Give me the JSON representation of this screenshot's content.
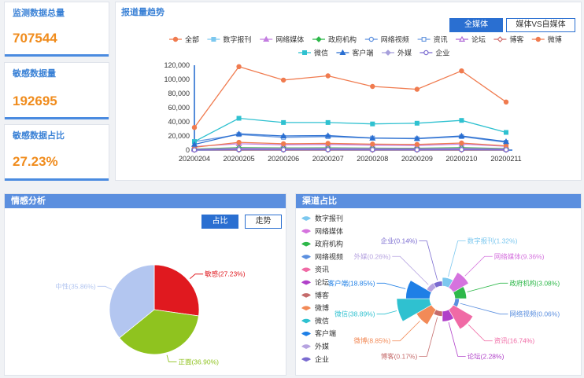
{
  "stats": [
    {
      "label": "监测数据总量",
      "value": "707544"
    },
    {
      "label": "敏感数据量",
      "value": "192695"
    },
    {
      "label": "敏感数据占比",
      "value": "27.23%"
    }
  ],
  "trend": {
    "title": "报道量趋势",
    "buttons": {
      "all_media": "全媒体",
      "compare": "媒体VS自媒体"
    },
    "chart_data": {
      "type": "line",
      "x": [
        "20200204",
        "20200205",
        "20200206",
        "20200207",
        "20200208",
        "20200209",
        "20200210",
        "20200211"
      ],
      "ylim": [
        0,
        120000
      ],
      "yticks": [
        "0",
        "20,000",
        "40,000",
        "60,000",
        "80,000",
        "100,000",
        "120,000"
      ],
      "series": [
        {
          "name": "全部",
          "color": "#f07b4f",
          "marker": "circle",
          "values": [
            32000,
            118000,
            99000,
            105000,
            90000,
            86000,
            112000,
            68000
          ]
        },
        {
          "name": "数字报刊",
          "color": "#7cc8ef",
          "marker": "square",
          "values": [
            800,
            1000,
            900,
            950,
            850,
            800,
            1000,
            700
          ]
        },
        {
          "name": "网络媒体",
          "color": "#c37de0",
          "marker": "triangle",
          "values": [
            5000,
            9000,
            7500,
            8000,
            7000,
            6500,
            8500,
            5500
          ]
        },
        {
          "name": "政府机构",
          "color": "#2eb84a",
          "marker": "diamond",
          "values": [
            1500,
            3500,
            3000,
            3200,
            2800,
            2600,
            3400,
            2200
          ]
        },
        {
          "name": "网络视频",
          "color": "#5b8fdf",
          "marker": "circle-open",
          "values": [
            200,
            400,
            350,
            380,
            330,
            300,
            380,
            250
          ]
        },
        {
          "name": "资讯",
          "color": "#6c9be0",
          "marker": "square-open",
          "values": [
            12000,
            22000,
            18000,
            19000,
            17000,
            16000,
            19000,
            11000
          ]
        },
        {
          "name": "论坛",
          "color": "#b06ad6",
          "marker": "triangle-open",
          "values": [
            1000,
            2500,
            2200,
            2300,
            2000,
            1900,
            2400,
            1600
          ]
        },
        {
          "name": "博客",
          "color": "#d06b6b",
          "marker": "diamond-open",
          "values": [
            100,
            200,
            180,
            190,
            170,
            160,
            190,
            140
          ]
        },
        {
          "name": "微博",
          "color": "#f07b4f",
          "marker": "circle",
          "values": [
            4000,
            11000,
            9000,
            9500,
            8500,
            8000,
            10000,
            6000
          ]
        },
        {
          "name": "微信",
          "color": "#2fc1d0",
          "marker": "square",
          "values": [
            12000,
            45000,
            39000,
            39000,
            37000,
            38000,
            42000,
            25000
          ]
        },
        {
          "name": "客户端",
          "color": "#2a6fd1",
          "marker": "triangle",
          "values": [
            8000,
            23000,
            20000,
            20500,
            17000,
            16500,
            20000,
            12000
          ]
        },
        {
          "name": "外媒",
          "color": "#a8a0dc",
          "marker": "diamond",
          "values": [
            600,
            1500,
            1300,
            1400,
            1200,
            1100,
            1400,
            900
          ]
        },
        {
          "name": "企业",
          "color": "#7a6bd0",
          "marker": "circle-open",
          "values": [
            300,
            800,
            700,
            750,
            650,
            600,
            750,
            500
          ]
        }
      ]
    }
  },
  "sentiment": {
    "title": "情感分析",
    "buttons": {
      "ratio": "占比",
      "trend": "走势"
    },
    "chart_data": {
      "type": "pie",
      "slices": [
        {
          "name": "敏感",
          "label": "敏感(27.23%)",
          "value": 27.23,
          "color": "#e0191f"
        },
        {
          "name": "正面",
          "label": "正面(36.90%)",
          "value": 36.9,
          "color": "#8fc31f"
        },
        {
          "name": "中性",
          "label": "中性(35.86%)",
          "value": 35.86,
          "color": "#b3c6f0"
        }
      ]
    }
  },
  "channel": {
    "title": "渠道占比",
    "chart_data": {
      "type": "pie",
      "variant": "rose",
      "slices": [
        {
          "name": "数字报刊",
          "label": "数字报刊(1.32%)",
          "value": 1.32,
          "color": "#7cc8ef"
        },
        {
          "name": "网络媒体",
          "label": "网络媒体(9.36%)",
          "value": 9.36,
          "color": "#d573de"
        },
        {
          "name": "政府机构",
          "label": "政府机构(3.08%)",
          "value": 3.08,
          "color": "#2eb84a"
        },
        {
          "name": "网络视频",
          "label": "网络视频(0.06%)",
          "value": 0.06,
          "color": "#5b8fdf"
        },
        {
          "name": "资讯",
          "label": "资讯(16.74%)",
          "value": 16.74,
          "color": "#f06aa5"
        },
        {
          "name": "论坛",
          "label": "论坛(2.28%)",
          "value": 2.28,
          "color": "#b040c9"
        },
        {
          "name": "博客",
          "label": "博客(0.17%)",
          "value": 0.17,
          "color": "#c56b6b"
        },
        {
          "name": "微博",
          "label": "微博(8.85%)",
          "value": 8.85,
          "color": "#f28a57"
        },
        {
          "name": "微信",
          "label": "微信(38.89%)",
          "value": 38.89,
          "color": "#2fc1d0"
        },
        {
          "name": "客户端",
          "label": "客户端(18.85%)",
          "value": 18.85,
          "color": "#1e7fe6"
        },
        {
          "name": "外媒",
          "label": "外媒(0.26%)",
          "value": 0.26,
          "color": "#b6a3e0"
        },
        {
          "name": "企业",
          "label": "企业(0.14%)",
          "value": 0.14,
          "color": "#7a6bd0"
        }
      ]
    }
  }
}
